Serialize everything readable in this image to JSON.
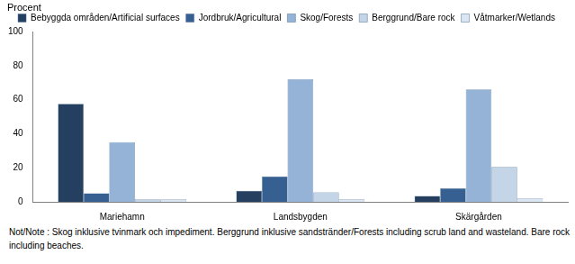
{
  "chart_data": {
    "type": "bar",
    "ylabel": "Procent",
    "categories": [
      "Mariehamn",
      "Landsbygden",
      "Skärgården"
    ],
    "series": [
      {
        "name": "Bebyggda områden/Artificial surfaces",
        "color": "#243f60",
        "values": [
          57.5,
          6.5,
          3.5
        ]
      },
      {
        "name": "Jordbruk/Agricultural",
        "color": "#366092",
        "values": [
          5,
          15,
          8
        ]
      },
      {
        "name": "Skog/Forests",
        "color": "#95b3d7",
        "values": [
          35,
          72,
          66
        ]
      },
      {
        "name": "Berggrund/Bare rock",
        "color": "#c5d5e8",
        "values": [
          1.5,
          5.5,
          20.5
        ]
      },
      {
        "name": "Våtmarker/Wetlands",
        "color": "#dce6f2",
        "values": [
          1.5,
          1.5,
          2
        ]
      }
    ],
    "ylim": [
      0,
      100
    ],
    "yticks": [
      0,
      20,
      40,
      60,
      80,
      100
    ],
    "grid": false,
    "legend": "top",
    "note": "Not/Note : Skog inklusive tvinmark och impediment. Berggrund inklusive sandstränder/Forests including scrub land and wasteland. Bare rock including beaches."
  }
}
